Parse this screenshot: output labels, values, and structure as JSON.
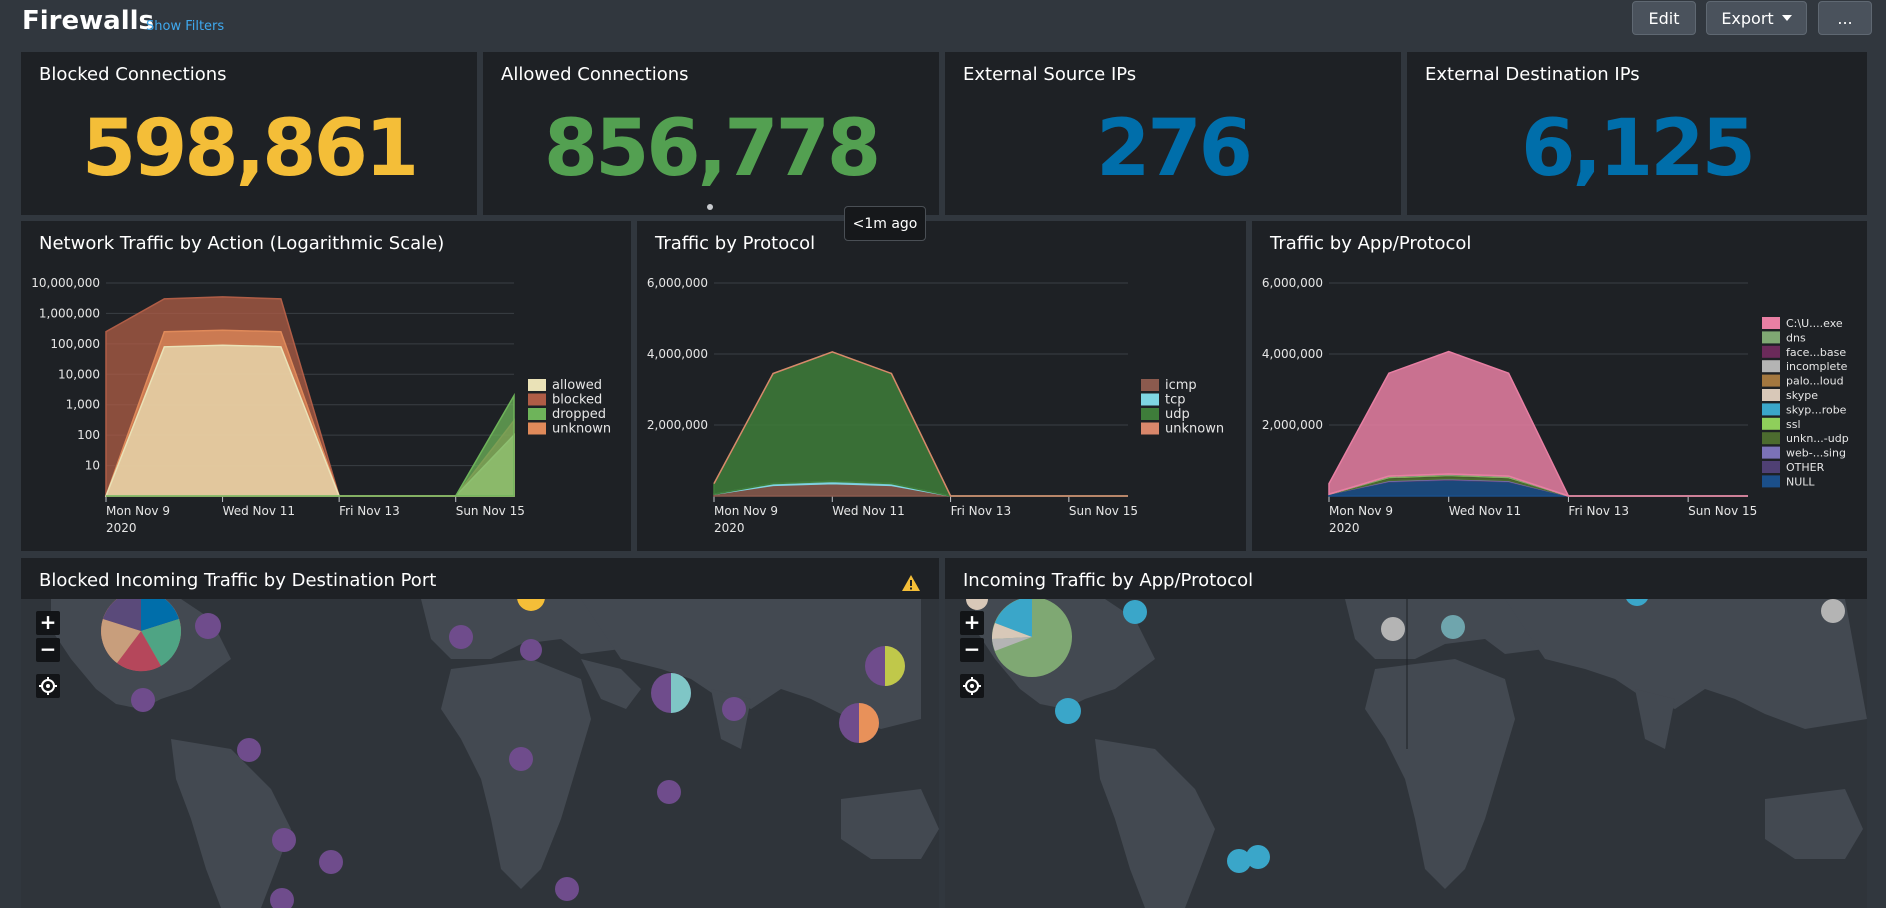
{
  "header": {
    "title": "Firewalls",
    "show_filters": "Show Filters",
    "edit_label": "Edit",
    "export_label": "Export",
    "more_label": "..."
  },
  "singles": [
    {
      "title": "Blocked Connections",
      "value": "598,861",
      "color": "#f4be38"
    },
    {
      "title": "Allowed Connections",
      "value": "856,778",
      "color": "#53a051"
    },
    {
      "title": "External Source IPs",
      "value": "276",
      "color": "#006eaa"
    },
    {
      "title": "External Destination IPs",
      "value": "6,125",
      "color": "#006eaa"
    }
  ],
  "tooltip": "<1m ago",
  "charts": [
    {
      "title": "Network Traffic by Action (Logarithmic Scale)",
      "chart_data": {
        "type": "area",
        "scale": "log",
        "x": [
          "Mon Nov 9",
          "Tue Nov 10",
          "Wed Nov 11",
          "Thu Nov 12",
          "Fri Nov 13",
          "Sat Nov 14",
          "Sun Nov 15",
          "Mon Nov 16"
        ],
        "xticks": [
          "Mon Nov 9",
          "Wed Nov 11",
          "Fri Nov 13",
          "Sun Nov 15"
        ],
        "xsub": "2020",
        "yticks": [
          "10",
          "100",
          "1,000",
          "10,000",
          "100,000",
          "1,000,000",
          "10,000,000"
        ],
        "ylim": [
          1,
          10000000
        ],
        "legend_position": "right",
        "series": [
          {
            "name": "allowed",
            "color": "#eae2b7",
            "values": [
              1,
              80000,
              90000,
              80000,
              1,
              1,
              1,
              100
            ]
          },
          {
            "name": "blocked",
            "color": "#b05d46",
            "values": [
              250000,
              3000000,
              3500000,
              3000000,
              1,
              1,
              1,
              300
            ]
          },
          {
            "name": "dropped",
            "color": "#6eb45a",
            "values": [
              1,
              1,
              1,
              1,
              1,
              1,
              1,
              2000
            ]
          },
          {
            "name": "unknown",
            "color": "#e08a5a",
            "values": [
              1,
              250000,
              280000,
              250000,
              1,
              1,
              1,
              100
            ]
          }
        ]
      }
    },
    {
      "title": "Traffic by Protocol",
      "chart_data": {
        "type": "area",
        "x": [
          "Mon Nov 9",
          "Tue Nov 10",
          "Wed Nov 11",
          "Thu Nov 12",
          "Fri Nov 13",
          "Sat Nov 14",
          "Sun Nov 15",
          "Mon Nov 16"
        ],
        "xticks": [
          "Mon Nov 9",
          "Wed Nov 11",
          "Fri Nov 13",
          "Sun Nov 15"
        ],
        "xsub": "2020",
        "yticks": [
          "2,000,000",
          "4,000,000",
          "6,000,000"
        ],
        "ylim": [
          0,
          6000000
        ],
        "legend_position": "right",
        "series": [
          {
            "name": "icmp",
            "color": "#8b5a4e",
            "values": [
              50000,
              300000,
              350000,
              300000,
              0,
              0,
              0,
              0
            ]
          },
          {
            "name": "tcp",
            "color": "#7fd6e3",
            "values": [
              0,
              50000,
              60000,
              50000,
              0,
              0,
              0,
              0
            ]
          },
          {
            "name": "udp",
            "color": "#3e7d3a",
            "values": [
              300000,
              3100000,
              3650000,
              3100000,
              0,
              0,
              0,
              0
            ]
          },
          {
            "name": "unknown",
            "color": "#d9876b",
            "values": [
              0,
              0,
              0,
              0,
              0,
              0,
              0,
              0
            ]
          }
        ]
      }
    },
    {
      "title": "Traffic by App/Protocol",
      "chart_data": {
        "type": "area",
        "x": [
          "Mon Nov 9",
          "Tue Nov 10",
          "Wed Nov 11",
          "Thu Nov 12",
          "Fri Nov 13",
          "Sat Nov 14",
          "Sun Nov 15",
          "Mon Nov 16"
        ],
        "xticks": [
          "Mon Nov 9",
          "Wed Nov 11",
          "Fri Nov 13",
          "Sun Nov 15"
        ],
        "xsub": "2020",
        "yticks": [
          "2,000,000",
          "4,000,000",
          "6,000,000"
        ],
        "ylim": [
          0,
          6000000
        ],
        "legend_position": "right",
        "series": [
          {
            "name": "NULL",
            "color": "#1b4f8a",
            "values": [
              50000,
              400000,
              450000,
              400000,
              0,
              0,
              0,
              0
            ]
          },
          {
            "name": "OTHER",
            "color": "#4f4074",
            "values": [
              0,
              20000,
              20000,
              20000,
              0,
              0,
              0,
              0
            ]
          },
          {
            "name": "web-...sing",
            "color": "#7b72b8",
            "values": [
              0,
              20000,
              20000,
              20000,
              0,
              0,
              0,
              0
            ]
          },
          {
            "name": "unkn...-udp",
            "color": "#4c6b2f",
            "values": [
              0,
              80000,
              90000,
              80000,
              0,
              0,
              0,
              0
            ]
          },
          {
            "name": "ssl",
            "color": "#8fcf5b",
            "values": [
              0,
              20000,
              20000,
              20000,
              0,
              0,
              0,
              0
            ]
          },
          {
            "name": "skyp...robe",
            "color": "#3aa6c9",
            "values": [
              0,
              0,
              0,
              0,
              0,
              0,
              0,
              0
            ]
          },
          {
            "name": "skype",
            "color": "#d8c8b8",
            "values": [
              0,
              0,
              0,
              0,
              0,
              0,
              0,
              0
            ]
          },
          {
            "name": "palo...loud",
            "color": "#a3773f",
            "values": [
              0,
              0,
              0,
              0,
              0,
              0,
              0,
              0
            ]
          },
          {
            "name": "incomplete",
            "color": "#b4b4b4",
            "values": [
              0,
              0,
              0,
              0,
              0,
              0,
              0,
              0
            ]
          },
          {
            "name": "face...base",
            "color": "#6b2a5a",
            "values": [
              0,
              0,
              0,
              0,
              0,
              0,
              0,
              0
            ]
          },
          {
            "name": "dns",
            "color": "#7fa873",
            "values": [
              0,
              20000,
              20000,
              20000,
              0,
              0,
              0,
              0
            ]
          },
          {
            "name": "C:\\U....exe",
            "color": "#e87fa3",
            "values": [
              300000,
              2900000,
              3450000,
              2900000,
              0,
              0,
              0,
              0
            ]
          }
        ]
      }
    }
  ],
  "maps": [
    {
      "title": "Blocked Incoming Traffic by Destination Port",
      "zoom_in": "+",
      "zoom_out": "−"
    },
    {
      "title": "Incoming Traffic by App/Protocol",
      "zoom_in": "+",
      "zoom_out": "−"
    }
  ]
}
